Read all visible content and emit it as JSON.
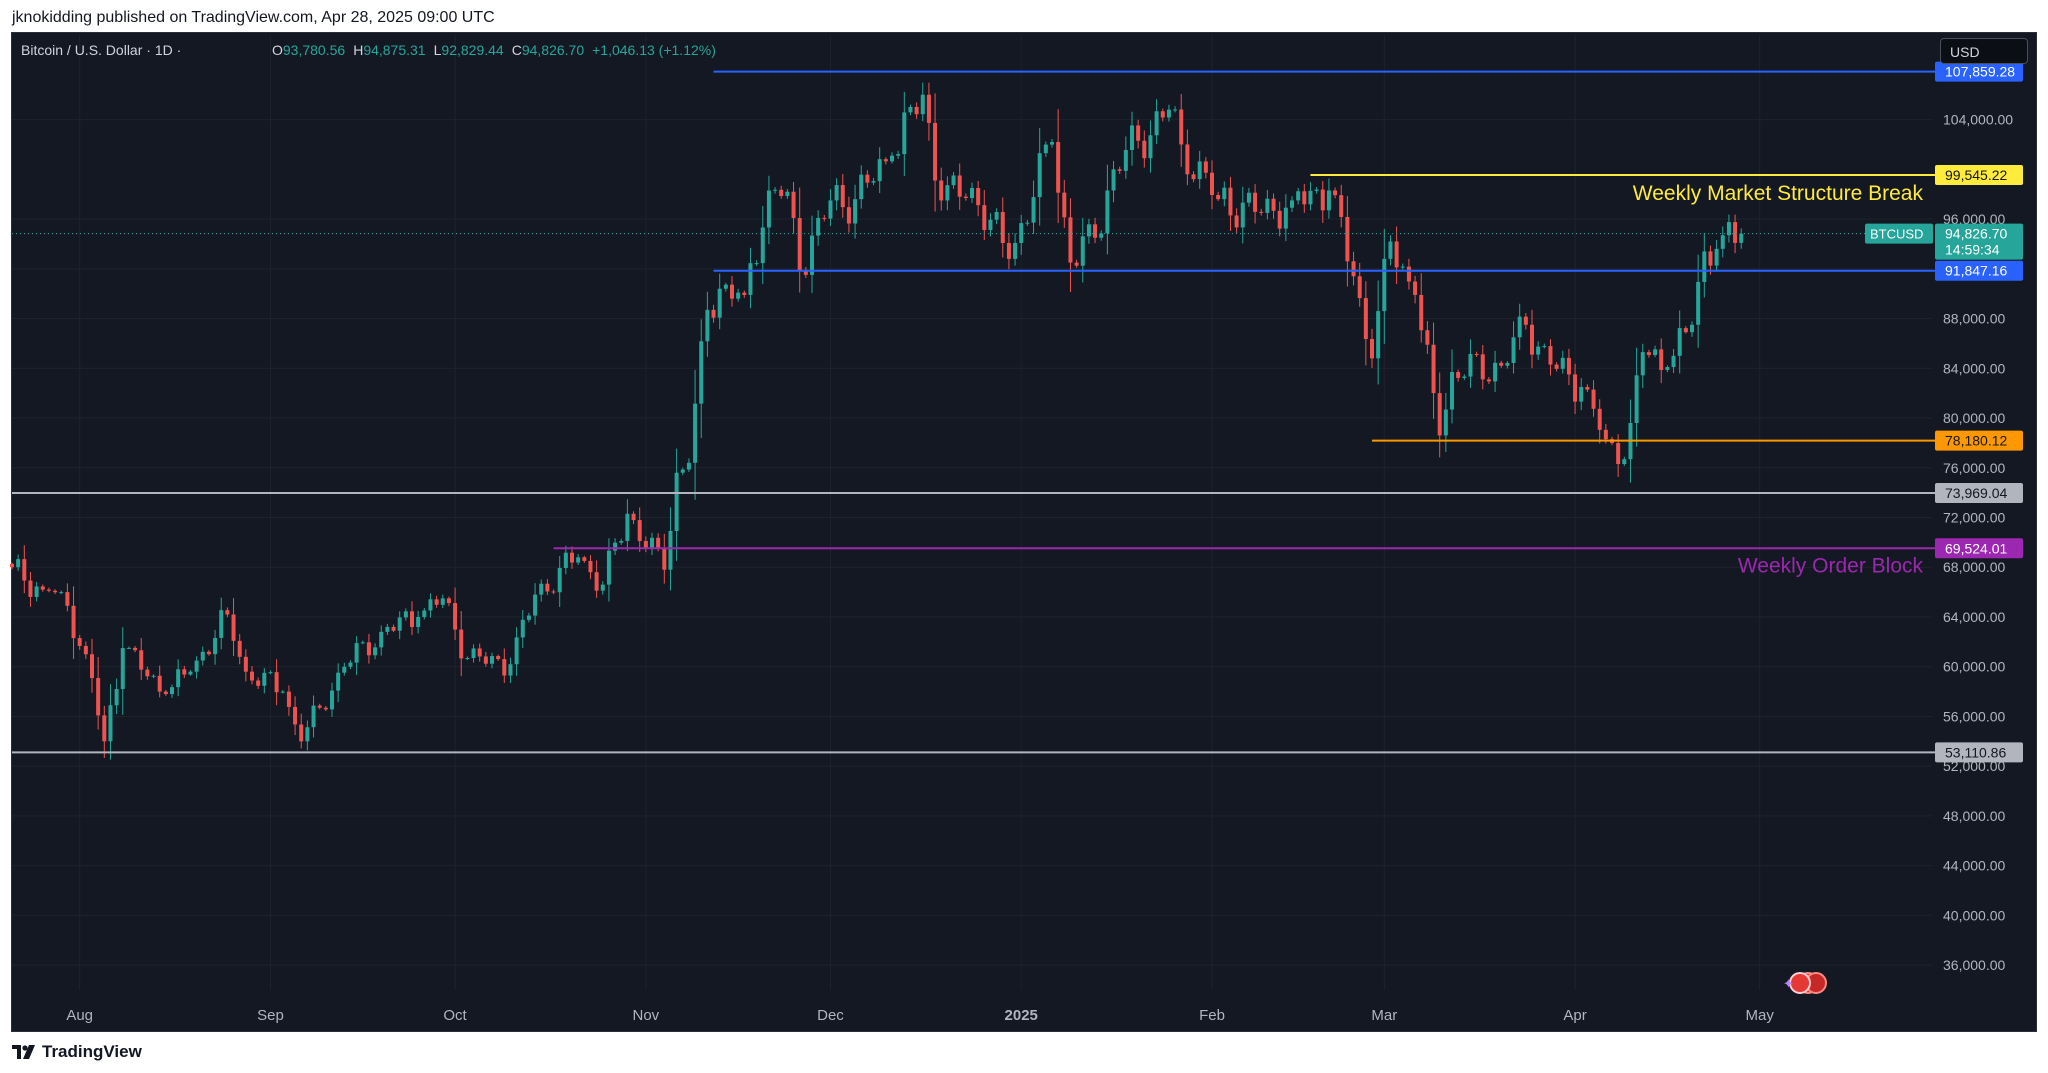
{
  "publisher_line": "jknokidding published on TradingView.com, Apr 28, 2025 09:00 UTC",
  "brand": "TradingView",
  "currency_button": "USD",
  "legend": {
    "symbol": "Bitcoin / U.S. Dollar · 1D ·",
    "o_label": "O",
    "o_value": "93,780.56",
    "h_label": "H",
    "h_value": "94,875.31",
    "l_label": "L",
    "l_value": "92,829.44",
    "c_label": "C",
    "c_value": "94,826.70",
    "change": "+1,046.13 (+1.12%)"
  },
  "colors": {
    "background": "#141823",
    "up": "#26a69a",
    "down": "#ef5350",
    "blue_level": "#2962ff",
    "yellow_level": "#ffeb3b",
    "orange_level": "#ff9800",
    "gray_level": "#b2b5be",
    "purple_level": "#9c27b0",
    "text": "#b2b5be"
  },
  "chart_data": {
    "type": "candlestick",
    "symbol": "BTCUSD",
    "timeframe": "1D",
    "ylim": [
      34000,
      110000
    ],
    "y_ticks": [
      "36,000.00",
      "40,000.00",
      "44,000.00",
      "48,000.00",
      "52,000.00",
      "56,000.00",
      "60,000.00",
      "64,000.00",
      "68,000.00",
      "72,000.00",
      "76,000.00",
      "80,000.00",
      "84,000.00",
      "88,000.00",
      "92,000.00",
      "96,000.00",
      "104,000.00"
    ],
    "x_ticks": [
      "Aug",
      "Sep",
      "Oct",
      "Nov",
      "Dec",
      "2025",
      "Feb",
      "Mar",
      "Apr",
      "May"
    ],
    "x_tick_dates": [
      "2024-08-01",
      "2024-09-01",
      "2024-10-01",
      "2024-11-01",
      "2024-12-01",
      "2025-01-01",
      "2025-02-01",
      "2025-03-01",
      "2025-04-01",
      "2025-05-01"
    ],
    "x_range_dates": [
      "2024-07-21",
      "2025-05-29"
    ],
    "current_price": {
      "symbol_label": "BTCUSD",
      "price": "94,826.70",
      "countdown": "14:59:34",
      "value": 94826.7
    },
    "horizontal_levels": [
      {
        "value": 107859.28,
        "label": "107,859.28",
        "color": "#2962ff",
        "start_date": "2024-11-12"
      },
      {
        "value": 99545.22,
        "label": "99,545.22",
        "color": "#ffeb3b",
        "start_date": "2025-02-17",
        "text": "Weekly Market Structure Break"
      },
      {
        "value": 91847.16,
        "label": "91,847.16",
        "color": "#2962ff",
        "start_date": "2024-11-12"
      },
      {
        "value": 78180.12,
        "label": "78,180.12",
        "color": "#ff9800",
        "start_date": "2025-02-27"
      },
      {
        "value": 73969.04,
        "label": "73,969.04",
        "color": "#b2b5be",
        "start_date": "2024-07-21"
      },
      {
        "value": 69524.01,
        "label": "69,524.01",
        "color": "#9c27b0",
        "start_date": "2024-10-17",
        "text": "Weekly Order Block"
      },
      {
        "value": 53110.86,
        "label": "53,110.86",
        "color": "#b2b5be",
        "start_date": "2024-07-21"
      }
    ],
    "anchors": [
      [
        "2024-07-21",
        68000
      ],
      [
        "2024-07-26",
        66200
      ],
      [
        "2024-07-29",
        66000
      ],
      [
        "2024-08-02",
        61000
      ],
      [
        "2024-08-05",
        54000
      ],
      [
        "2024-08-08",
        61500
      ],
      [
        "2024-08-15",
        57800
      ],
      [
        "2024-08-19",
        59600
      ],
      [
        "2024-08-25",
        64200
      ],
      [
        "2024-08-28",
        59600
      ],
      [
        "2024-09-03",
        58000
      ],
      [
        "2024-09-06",
        54000
      ],
      [
        "2024-09-09",
        56700
      ],
      [
        "2024-09-13",
        60000
      ],
      [
        "2024-09-19",
        62800
      ],
      [
        "2024-09-25",
        64000
      ],
      [
        "2024-09-29",
        65500
      ],
      [
        "2024-10-03",
        60700
      ],
      [
        "2024-10-10",
        60200
      ],
      [
        "2024-10-14",
        65800
      ],
      [
        "2024-10-21",
        68800
      ],
      [
        "2024-10-25",
        66600
      ],
      [
        "2024-10-29",
        72300
      ],
      [
        "2024-11-04",
        67800
      ],
      [
        "2024-11-06",
        75600
      ],
      [
        "2024-11-08",
        76400
      ],
      [
        "2024-11-11",
        88700
      ],
      [
        "2024-11-13",
        90400
      ],
      [
        "2024-11-17",
        89900
      ],
      [
        "2024-11-21",
        98300
      ],
      [
        "2024-11-24",
        98200
      ],
      [
        "2024-11-26",
        91900
      ],
      [
        "2024-12-01",
        97500
      ],
      [
        "2024-12-05",
        97600
      ],
      [
        "2024-12-11",
        101100
      ],
      [
        "2024-12-16",
        106000
      ],
      [
        "2024-12-19",
        97500
      ],
      [
        "2024-12-24",
        98500
      ],
      [
        "2024-12-30",
        92800
      ],
      [
        "2025-01-06",
        102200
      ],
      [
        "2025-01-09",
        92500
      ],
      [
        "2025-01-13",
        94500
      ],
      [
        "2025-01-16",
        100000
      ],
      [
        "2025-01-20",
        102300
      ],
      [
        "2025-01-25",
        104800
      ],
      [
        "2025-01-27",
        102000
      ],
      [
        "2025-02-02",
        97600
      ],
      [
        "2025-02-09",
        96500
      ],
      [
        "2025-02-14",
        97500
      ],
      [
        "2025-02-20",
        98300
      ],
      [
        "2025-02-24",
        91400
      ],
      [
        "2025-02-27",
        84800
      ],
      [
        "2025-03-02",
        94200
      ],
      [
        "2025-03-06",
        89900
      ],
      [
        "2025-03-10",
        78600
      ],
      [
        "2025-03-12",
        83700
      ],
      [
        "2025-03-20",
        84200
      ],
      [
        "2025-03-24",
        87500
      ],
      [
        "2025-03-28",
        84300
      ],
      [
        "2025-04-02",
        82500
      ],
      [
        "2025-04-06",
        78300
      ],
      [
        "2025-04-08",
        76300
      ],
      [
        "2025-04-10",
        79600
      ],
      [
        "2025-04-12",
        85300
      ],
      [
        "2025-04-16",
        84100
      ],
      [
        "2025-04-20",
        87500
      ],
      [
        "2025-04-22",
        93400
      ],
      [
        "2025-04-25",
        94700
      ],
      [
        "2025-04-28",
        94826.7
      ]
    ]
  }
}
